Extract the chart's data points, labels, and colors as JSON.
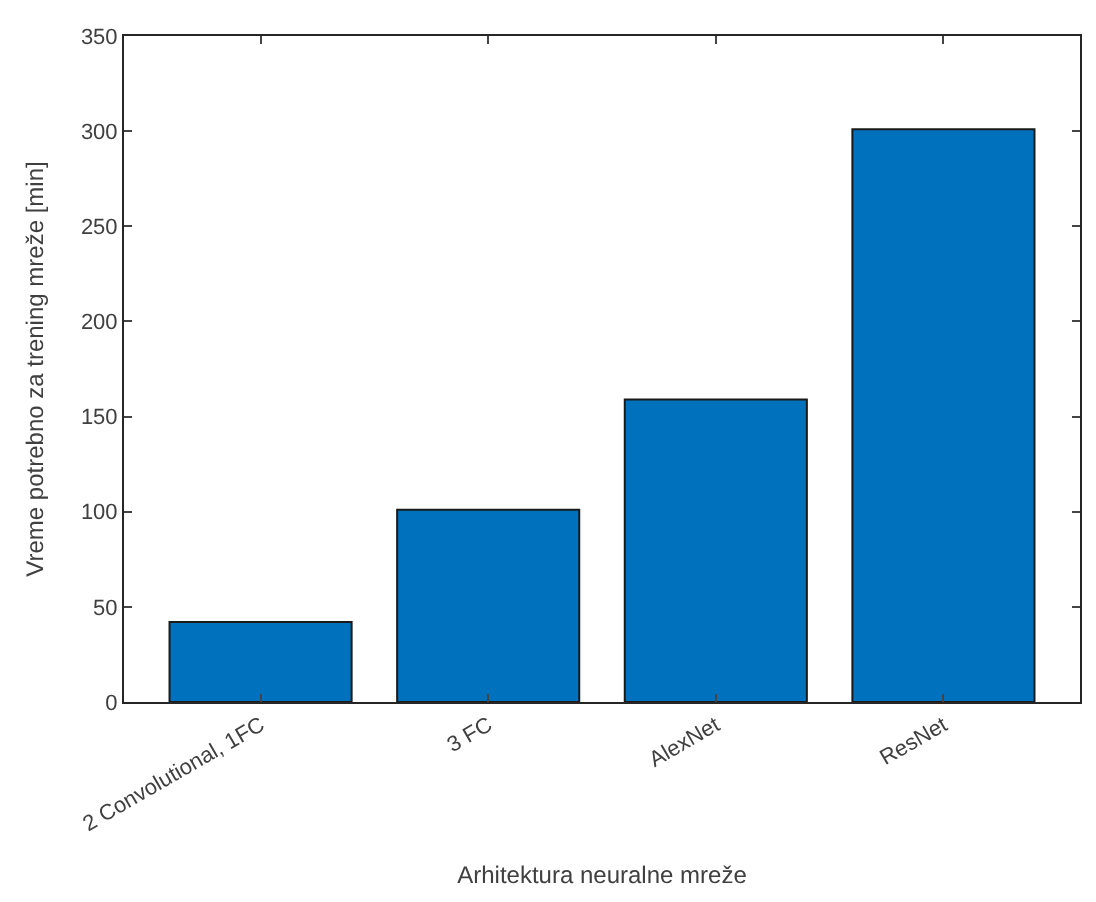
{
  "chart_data": {
    "type": "bar",
    "xlabel": "Arhitektura neuralne mreže",
    "ylabel": "Vreme potrebno za trening mreže [min]",
    "categories": [
      "2 Convolutional, 1FC",
      "3 FC",
      "AlexNet",
      "ResNet"
    ],
    "values": [
      42,
      101,
      159,
      301
    ],
    "color": "#0072bd",
    "ylim": [
      0,
      350
    ],
    "yticks": [
      0,
      50,
      100,
      150,
      200,
      250,
      300,
      350
    ]
  }
}
